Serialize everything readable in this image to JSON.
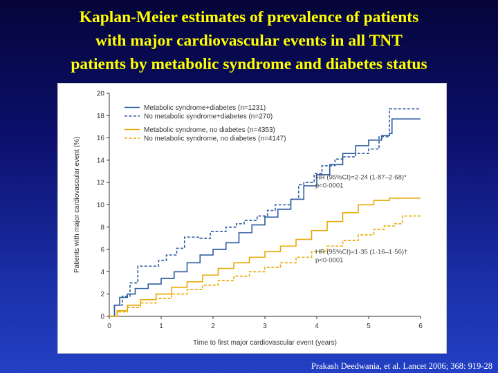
{
  "title": {
    "line1": "Kaplan-Meier estimates of prevalence of patients",
    "line2": "with  major  cardiovascular  events  in  all  TNT",
    "line3": "patients by metabolic syndrome and diabetes status"
  },
  "citation": "Prakash Deedwania, et al. Lancet 2006; 368: 919-28",
  "chart_data": {
    "type": "line",
    "xlabel": "Time to first major cardiovascular event (years)",
    "ylabel": "Patients with major cardiovascular event (%)",
    "xlim": [
      0,
      6
    ],
    "ylim": [
      0,
      20
    ],
    "xticks": [
      "0",
      "1",
      "2",
      "3",
      "4",
      "5",
      "6"
    ],
    "yticks": [
      "0",
      "2",
      "4",
      "6",
      "8",
      "10",
      "12",
      "14",
      "16",
      "18",
      "20"
    ],
    "grid": false,
    "legend_position": "top-left",
    "series": [
      {
        "name": "Metabolic syndrome+diabetes (n=1231)",
        "color": "#2a5aa0",
        "dash": "solid",
        "x": [
          0,
          0.1,
          0.2,
          0.35,
          0.5,
          0.75,
          1.0,
          1.25,
          1.5,
          1.75,
          2.0,
          2.25,
          2.5,
          2.75,
          3.0,
          3.25,
          3.5,
          3.75,
          4.0,
          4.25,
          4.5,
          4.75,
          5.0,
          5.25,
          5.4,
          5.45,
          6.0
        ],
        "y": [
          0,
          1.0,
          1.7,
          2.0,
          2.5,
          2.9,
          3.4,
          4.0,
          4.8,
          5.5,
          6.0,
          6.6,
          7.5,
          8.2,
          8.9,
          9.6,
          10.5,
          11.7,
          12.7,
          13.6,
          14.6,
          15.3,
          15.8,
          16.2,
          16.4,
          17.7,
          17.7
        ]
      },
      {
        "name": "No metabolic syndrome+diabetes (n=270)",
        "color": "#2a5aa0",
        "dash": "dashed",
        "x": [
          0,
          0.1,
          0.25,
          0.4,
          0.55,
          0.7,
          0.95,
          1.1,
          1.3,
          1.45,
          1.75,
          1.95,
          2.25,
          2.45,
          2.6,
          2.85,
          3.05,
          3.2,
          3.5,
          3.65,
          3.75,
          3.95,
          4.1,
          4.35,
          4.5,
          4.75,
          5.0,
          5.2,
          5.4,
          6.0
        ],
        "y": [
          0,
          1.0,
          1.8,
          3.0,
          4.5,
          4.5,
          5.0,
          5.5,
          6.1,
          7.1,
          7.0,
          7.6,
          8.0,
          8.3,
          8.6,
          9.0,
          9.5,
          10.0,
          10.5,
          11.8,
          12.0,
          12.8,
          13.5,
          14.1,
          14.3,
          14.6,
          15.0,
          16.1,
          18.6,
          18.6
        ]
      },
      {
        "name": "Metabolic syndrome, no diabetes (n=4353)",
        "color": "#e8a800",
        "dash": "solid",
        "x": [
          0,
          0.15,
          0.35,
          0.6,
          0.9,
          1.2,
          1.5,
          1.8,
          2.1,
          2.4,
          2.7,
          3.0,
          3.3,
          3.6,
          3.9,
          4.2,
          4.5,
          4.8,
          5.1,
          5.4,
          6.0
        ],
        "y": [
          0,
          0.5,
          1.0,
          1.5,
          2.0,
          2.6,
          3.1,
          3.7,
          4.3,
          4.8,
          5.3,
          5.8,
          6.3,
          6.9,
          7.7,
          8.5,
          9.3,
          10.0,
          10.4,
          10.6,
          10.6
        ]
      },
      {
        "name": "No metabolic syndrome, no diabetes (n=4147)",
        "color": "#e8a800",
        "dash": "dashed",
        "x": [
          0,
          0.15,
          0.35,
          0.6,
          0.9,
          1.2,
          1.5,
          1.8,
          2.1,
          2.4,
          2.7,
          3.0,
          3.3,
          3.6,
          3.9,
          4.2,
          4.5,
          4.8,
          5.1,
          5.3,
          5.5,
          5.65,
          6.0
        ],
        "y": [
          0,
          0.4,
          0.8,
          1.2,
          1.6,
          2.0,
          2.4,
          2.8,
          3.2,
          3.6,
          4.0,
          4.4,
          4.8,
          5.3,
          5.8,
          6.3,
          6.8,
          7.3,
          7.8,
          8.1,
          8.3,
          9.0,
          9.0
        ]
      }
    ],
    "annotations": [
      {
        "text1": "HR (95%CI)=2·24 (1·87–2·68)*",
        "text2": "p<0·0001",
        "color": "#2a5aa0",
        "x": 4.0,
        "y": 12.3
      },
      {
        "text1": "HR (95%CI)=1·35 (1·16–1·56)†",
        "text2": "p<0·0001",
        "color": "#e8a800",
        "x": 4.0,
        "y": 5.6
      }
    ]
  }
}
